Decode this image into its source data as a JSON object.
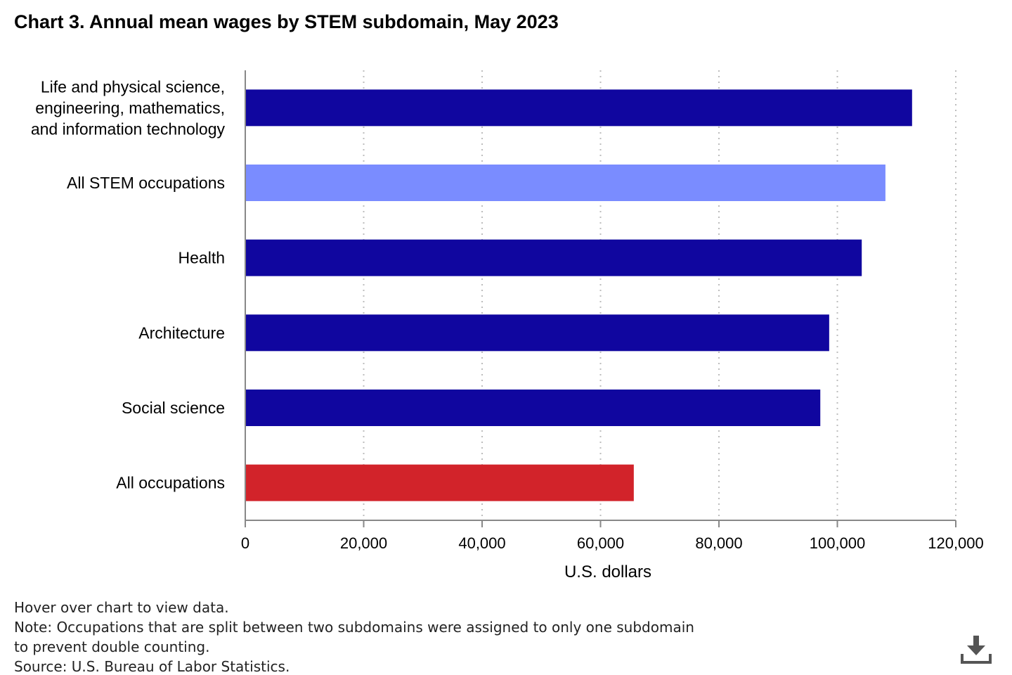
{
  "chart_data": {
    "type": "bar",
    "orientation": "horizontal",
    "title": "Chart 3. Annual mean wages by STEM subdomain, May 2023",
    "categories": [
      [
        "Life and physical science,",
        "engineering, mathematics,",
        "and information technology"
      ],
      [
        "All STEM occupations"
      ],
      [
        "Health"
      ],
      [
        "Architecture"
      ],
      [
        "Social science"
      ],
      [
        "All occupations"
      ]
    ],
    "values": [
      112500,
      108000,
      104000,
      98500,
      97000,
      65500
    ],
    "bar_colors": [
      "#10069f",
      "#7a8cff",
      "#10069f",
      "#10069f",
      "#10069f",
      "#d2232a"
    ],
    "xlabel": "U.S. dollars",
    "ylabel": "",
    "xlim": [
      0,
      120000
    ],
    "x_ticks": [
      0,
      20000,
      40000,
      60000,
      80000,
      100000,
      120000
    ],
    "x_tick_labels": [
      "0",
      "20,000",
      "40,000",
      "60,000",
      "80,000",
      "100,000",
      "120,000"
    ],
    "grid": "vertical dotted",
    "legend": "none"
  },
  "footnotes": {
    "hover": "Hover over chart to view data.",
    "note_line1": "Note: Occupations that are split between two subdomains were assigned to only one subdomain",
    "note_line2": "to prevent double counting.",
    "source": "Source: U.S. Bureau of Labor Statistics."
  },
  "download": {
    "icon": "download-icon",
    "color": "#555555"
  }
}
